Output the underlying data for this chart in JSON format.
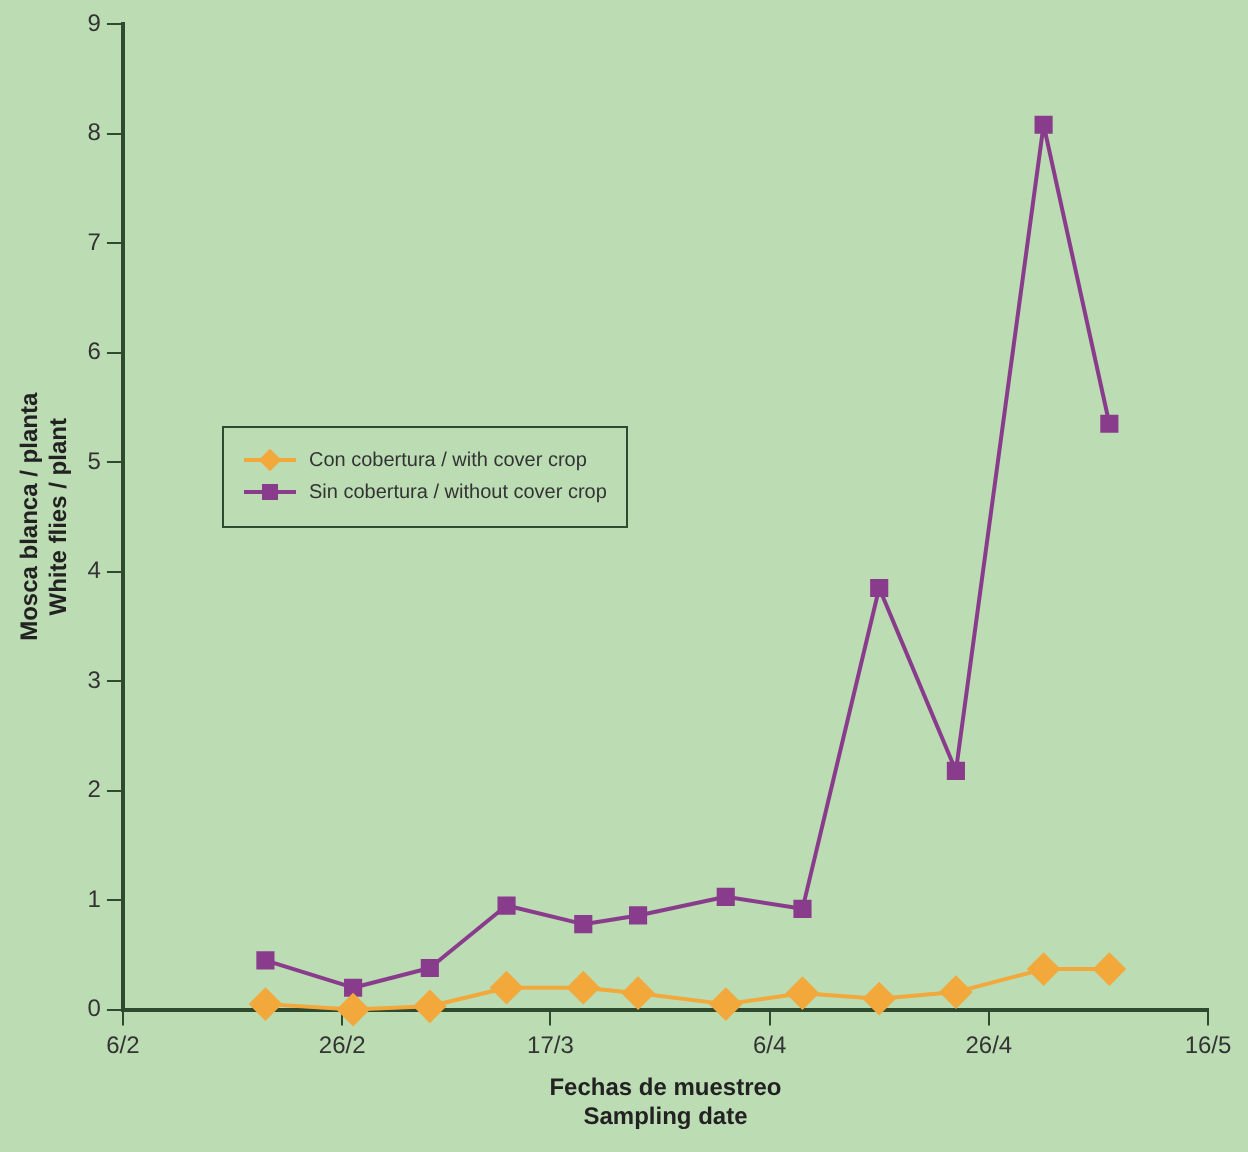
{
  "chart_data": {
    "type": "line",
    "xlabel": "Fechas de muestreo\nSampling date",
    "ylabel": "Mosca blanca / planta\nWhite flies / plant",
    "x": [
      "--02-19",
      "--02-27",
      "--03-06",
      "--03-13",
      "--03-20",
      "--03-25",
      "--04-02",
      "--04-09",
      "--04-16",
      "--04-23",
      "--05-01",
      "--05-07"
    ],
    "series": [
      {
        "name": "Con cobertura / with cover crop",
        "color": "#f2a83a",
        "marker": "diamond",
        "values": [
          0.05,
          0,
          0.03,
          0.2,
          0.2,
          0.15,
          0.05,
          0.15,
          0.1,
          0.16,
          0.37,
          0.37
        ]
      },
      {
        "name": "Sin cobertura / without cover crop",
        "color": "#8a3c8c",
        "marker": "square",
        "values": [
          0.45,
          0.2,
          0.38,
          0.95,
          0.78,
          0.86,
          1.03,
          0.92,
          3.85,
          2.18,
          8.08,
          5.35
        ]
      }
    ],
    "xlim": [
      "--02-06",
      "--05-16"
    ],
    "xticks": [
      {
        "value": "--02-06",
        "label": "6/2"
      },
      {
        "value": "--02-26",
        "label": "26/2"
      },
      {
        "value": "--03-17",
        "label": "17/3"
      },
      {
        "value": "--04-06",
        "label": "6/4"
      },
      {
        "value": "--04-26",
        "label": "26/4"
      },
      {
        "value": "--05-16",
        "label": "16/5"
      }
    ],
    "ylim": [
      0,
      9
    ],
    "yticks": [
      0,
      1,
      2,
      3,
      4,
      5,
      6,
      7,
      8,
      9
    ],
    "grid": false,
    "legend": "center left",
    "line_style": "solid"
  }
}
